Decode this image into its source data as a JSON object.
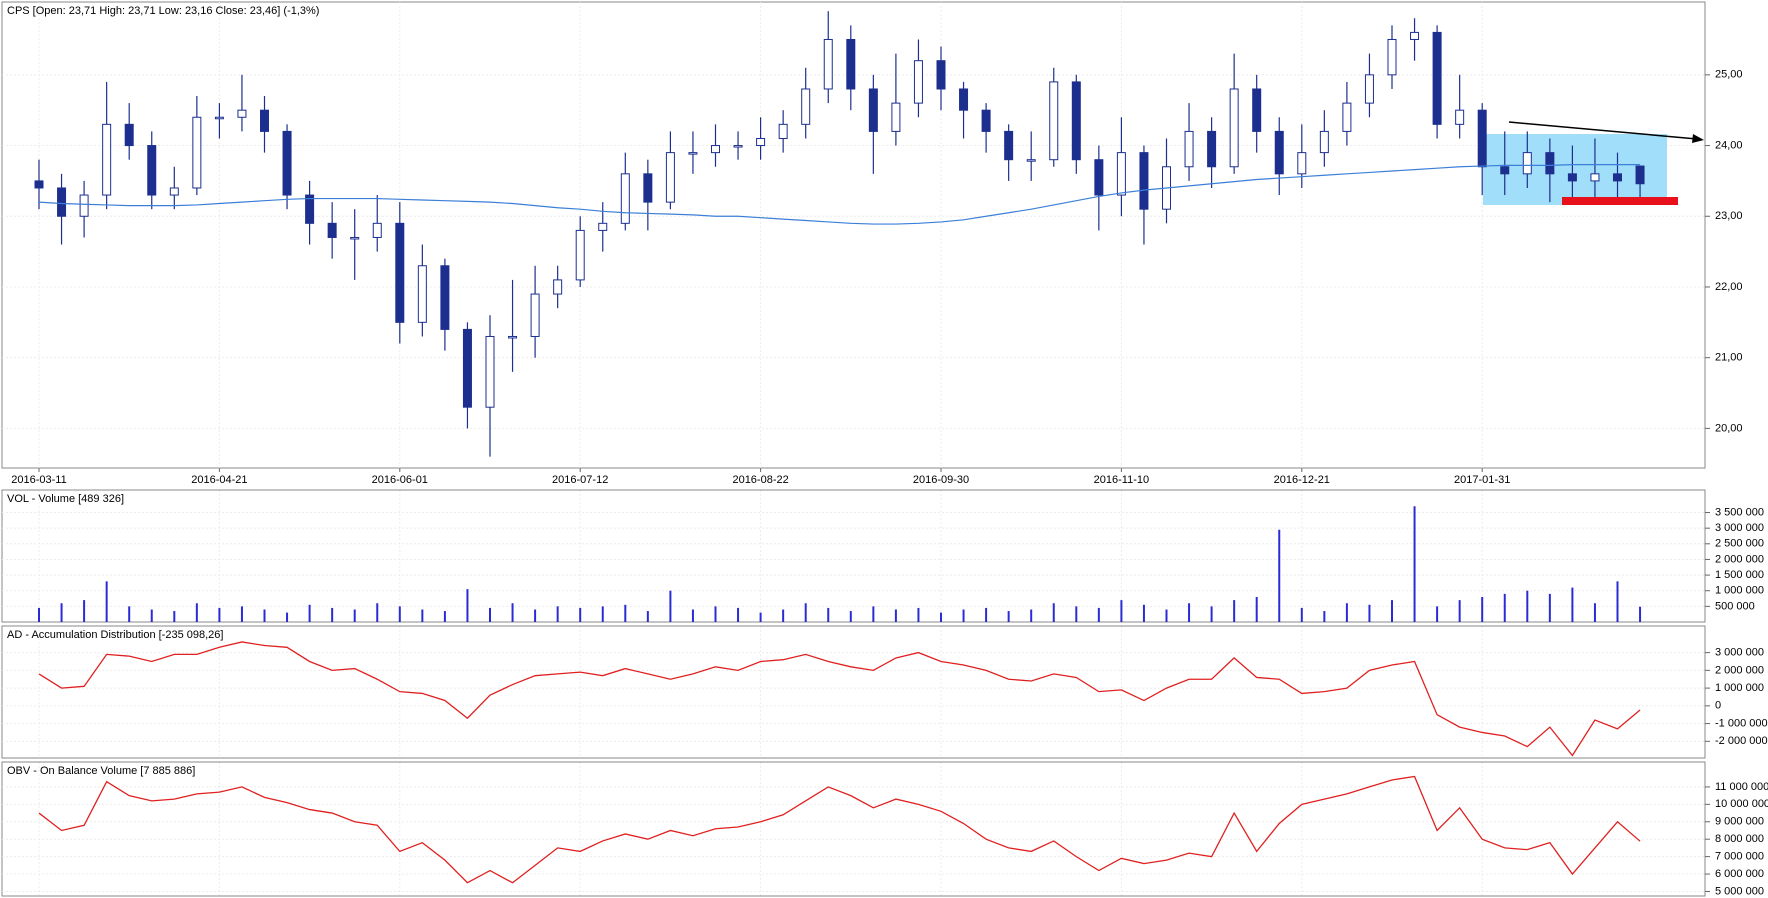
{
  "chart_data": [
    {
      "type": "candlestick",
      "title": "CPS [Open: 23,71  High: 23,71  Low: 23,16  Close: 23,46]  (-1,3%)",
      "color": "#1c2f8f",
      "categories": [
        "2016-03-11",
        null,
        null,
        null,
        null,
        null,
        null,
        null,
        "2016-04-21",
        null,
        null,
        null,
        null,
        null,
        null,
        null,
        "2016-06-01",
        null,
        null,
        null,
        null,
        null,
        null,
        null,
        "2016-07-12",
        null,
        null,
        null,
        null,
        null,
        null,
        null,
        "2016-08-22",
        null,
        null,
        null,
        null,
        null,
        null,
        null,
        "2016-09-30",
        null,
        null,
        null,
        null,
        null,
        null,
        null,
        "2016-11-10",
        null,
        null,
        null,
        null,
        null,
        null,
        null,
        "2016-12-21",
        null,
        null,
        null,
        null,
        null,
        null,
        null,
        "2017-01-31",
        null,
        null,
        null,
        null,
        null,
        null,
        null
      ],
      "open": [
        23.5,
        23.4,
        23.0,
        23.3,
        24.3,
        24.0,
        23.3,
        23.4,
        24.4,
        24.4,
        24.5,
        24.2,
        23.3,
        22.9,
        22.7,
        22.7,
        22.9,
        21.5,
        22.3,
        21.4,
        20.3,
        21.3,
        21.3,
        21.9,
        22.1,
        22.8,
        22.9,
        23.6,
        23.2,
        23.9,
        23.9,
        24.0,
        24.0,
        24.1,
        24.3,
        24.8,
        25.5,
        24.8,
        24.2,
        24.6,
        25.2,
        24.8,
        24.5,
        24.2,
        23.8,
        23.8,
        24.9,
        23.8,
        23.3,
        23.9,
        23.1,
        23.7,
        24.2,
        23.7,
        24.8,
        24.2,
        23.6,
        23.9,
        24.2,
        24.6,
        25.0,
        25.5,
        25.6,
        24.3,
        24.5,
        23.7,
        23.6,
        23.9,
        23.6,
        23.5,
        23.6,
        23.71
      ],
      "high": [
        23.8,
        23.6,
        23.5,
        24.9,
        24.6,
        24.2,
        23.7,
        24.7,
        24.6,
        25.0,
        24.7,
        24.3,
        23.5,
        23.2,
        23.1,
        23.3,
        23.2,
        22.6,
        22.4,
        21.5,
        21.6,
        22.1,
        22.3,
        22.3,
        23.0,
        23.2,
        23.9,
        23.8,
        24.2,
        24.2,
        24.3,
        24.2,
        24.4,
        24.5,
        25.1,
        25.9,
        25.7,
        25.0,
        25.3,
        25.5,
        25.4,
        24.9,
        24.6,
        24.3,
        24.2,
        25.1,
        25.0,
        24.0,
        24.4,
        24.0,
        24.1,
        24.6,
        24.4,
        25.3,
        25.0,
        24.4,
        24.3,
        24.5,
        24.9,
        25.3,
        25.7,
        25.8,
        25.7,
        25.0,
        24.6,
        24.2,
        24.2,
        24.1,
        24.0,
        24.1,
        23.9,
        23.71
      ],
      "low": [
        23.1,
        22.6,
        22.7,
        23.1,
        23.8,
        23.1,
        23.1,
        23.3,
        24.1,
        24.2,
        23.9,
        23.1,
        22.6,
        22.4,
        22.1,
        22.5,
        21.2,
        21.3,
        21.1,
        20.0,
        19.6,
        20.8,
        21.0,
        21.7,
        22.0,
        22.5,
        22.8,
        22.8,
        23.1,
        23.6,
        23.7,
        23.8,
        23.8,
        23.9,
        24.1,
        24.6,
        24.5,
        23.6,
        24.0,
        24.4,
        24.5,
        24.1,
        23.9,
        23.5,
        23.5,
        23.7,
        23.6,
        22.8,
        23.0,
        22.6,
        22.9,
        23.5,
        23.4,
        23.6,
        23.9,
        23.3,
        23.4,
        23.7,
        24.0,
        24.4,
        24.8,
        25.2,
        24.1,
        24.1,
        23.3,
        23.3,
        23.4,
        23.2,
        23.2,
        23.2,
        23.2,
        23.16
      ],
      "close": [
        23.4,
        23.0,
        23.3,
        24.3,
        24.0,
        23.3,
        23.4,
        24.4,
        24.4,
        24.5,
        24.2,
        23.3,
        22.9,
        22.7,
        22.7,
        22.9,
        21.5,
        22.3,
        21.4,
        20.3,
        21.3,
        21.3,
        21.9,
        22.1,
        22.8,
        22.9,
        23.6,
        23.2,
        23.9,
        23.9,
        24.0,
        24.0,
        24.1,
        24.3,
        24.8,
        25.5,
        24.8,
        24.2,
        24.6,
        25.2,
        24.8,
        24.5,
        24.2,
        23.8,
        23.8,
        24.9,
        23.8,
        23.3,
        23.9,
        23.1,
        23.7,
        24.2,
        23.7,
        24.8,
        24.2,
        23.6,
        23.9,
        24.2,
        24.6,
        25.0,
        25.5,
        25.6,
        24.3,
        24.5,
        23.7,
        23.6,
        23.9,
        23.6,
        23.5,
        23.6,
        23.5,
        23.46
      ],
      "ma": {
        "color": "#3b7fd8",
        "values": [
          23.2,
          23.18,
          23.17,
          23.16,
          23.15,
          23.15,
          23.15,
          23.16,
          23.18,
          23.2,
          23.22,
          23.24,
          23.25,
          23.25,
          23.25,
          23.25,
          23.24,
          23.23,
          23.22,
          23.21,
          23.2,
          23.18,
          23.15,
          23.12,
          23.1,
          23.07,
          23.05,
          23.04,
          23.03,
          23.02,
          23.0,
          23.0,
          22.98,
          22.96,
          22.94,
          22.92,
          22.9,
          22.89,
          22.89,
          22.9,
          22.92,
          22.95,
          23.0,
          23.05,
          23.1,
          23.16,
          23.22,
          23.28,
          23.33,
          23.37,
          23.4,
          23.43,
          23.46,
          23.49,
          23.52,
          23.54,
          23.56,
          23.58,
          23.6,
          23.62,
          23.64,
          23.66,
          23.68,
          23.7,
          23.71,
          23.72,
          23.72,
          23.72,
          23.73,
          23.73,
          23.73,
          23.73
        ]
      },
      "ylim": [
        19.44,
        26.03
      ],
      "yticks": [
        {
          "value": 20,
          "label": "20,00"
        },
        {
          "value": 21,
          "label": "21,00"
        },
        {
          "value": 22,
          "label": "22,00"
        },
        {
          "value": 23,
          "label": "23,00"
        },
        {
          "value": 24,
          "label": "24,00"
        },
        {
          "value": 25,
          "label": "25,00"
        }
      ],
      "grid": true
    },
    {
      "type": "bar",
      "title": "VOL - Volume [489 326]",
      "color": "#2b2bd6",
      "values": [
        450000,
        600000,
        700000,
        1300000,
        500000,
        400000,
        350000,
        600000,
        450000,
        500000,
        400000,
        300000,
        550000,
        450000,
        400000,
        600000,
        500000,
        400000,
        350000,
        1050000,
        450000,
        600000,
        400000,
        500000,
        450000,
        500000,
        550000,
        350000,
        1000000,
        400000,
        500000,
        450000,
        300000,
        400000,
        600000,
        450000,
        350000,
        500000,
        400000,
        450000,
        300000,
        400000,
        450000,
        350000,
        400000,
        600000,
        500000,
        450000,
        700000,
        550000,
        400000,
        600000,
        500000,
        700000,
        800000,
        2950000,
        450000,
        350000,
        600000,
        550000,
        700000,
        3700000,
        500000,
        700000,
        800000,
        900000,
        1000000,
        900000,
        1100000,
        600000,
        1300000,
        489326
      ],
      "ylim": [
        0,
        4220000
      ],
      "yticks": [
        {
          "value": 500000,
          "label": "500 000"
        },
        {
          "value": 1000000,
          "label": "1 000 000"
        },
        {
          "value": 1500000,
          "label": "1 500 000"
        },
        {
          "value": 2000000,
          "label": "2 000 000"
        },
        {
          "value": 2500000,
          "label": "2 500 000"
        },
        {
          "value": 3000000,
          "label": "3 000 000"
        },
        {
          "value": 3500000,
          "label": "3 500 000"
        }
      ],
      "grid": true
    },
    {
      "type": "line",
      "title": "AD - Accumulation Distribution [-235 098,26]",
      "color": "#e02020",
      "values": [
        1800000,
        1000000,
        1100000,
        2900000,
        2800000,
        2500000,
        2900000,
        2900000,
        3300000,
        3600000,
        3400000,
        3300000,
        2500000,
        2000000,
        2100000,
        1500000,
        800000,
        700000,
        300000,
        -700000,
        600000,
        1200000,
        1700000,
        1800000,
        1900000,
        1700000,
        2100000,
        1800000,
        1500000,
        1800000,
        2200000,
        2000000,
        2500000,
        2600000,
        2900000,
        2500000,
        2200000,
        2000000,
        2700000,
        3000000,
        2500000,
        2300000,
        2000000,
        1500000,
        1400000,
        1800000,
        1600000,
        800000,
        900000,
        300000,
        1000000,
        1500000,
        1500000,
        2700000,
        1600000,
        1500000,
        700000,
        800000,
        1000000,
        2000000,
        2300000,
        2500000,
        -500000,
        -1200000,
        -1500000,
        -1700000,
        -2300000,
        -1200000,
        -2800000,
        -800000,
        -1300000,
        -235098.26
      ],
      "ylim": [
        -2940000,
        4500000
      ],
      "yticks": [
        {
          "value": -2000000,
          "label": "-2 000 000"
        },
        {
          "value": -1000000,
          "label": "-1 000 000"
        },
        0,
        {
          "value": 1000000,
          "label": "1 000 000"
        },
        {
          "value": 2000000,
          "label": "2 000 000"
        },
        {
          "value": 3000000,
          "label": "3 000 000"
        }
      ],
      "grid": true
    },
    {
      "type": "line",
      "title": "OBV - On Balance Volume [7 885 886]",
      "color": "#e02020",
      "values": [
        9500000,
        8500000,
        8800000,
        11300000,
        10500000,
        10200000,
        10300000,
        10600000,
        10700000,
        11000000,
        10400000,
        10100000,
        9700000,
        9500000,
        9000000,
        8800000,
        7300000,
        7800000,
        6800000,
        5500000,
        6200000,
        5500000,
        6500000,
        7500000,
        7300000,
        7900000,
        8300000,
        8000000,
        8500000,
        8200000,
        8600000,
        8700000,
        9000000,
        9400000,
        10200000,
        11000000,
        10500000,
        9800000,
        10300000,
        10000000,
        9600000,
        8900000,
        8000000,
        7500000,
        7300000,
        7900000,
        7000000,
        6200000,
        6900000,
        6600000,
        6800000,
        7200000,
        7000000,
        9500000,
        7300000,
        8900000,
        10000000,
        10300000,
        10600000,
        11000000,
        11400000,
        11600000,
        8500000,
        9800000,
        8000000,
        7500000,
        7400000,
        7800000,
        6000000,
        7500000,
        9000000,
        7885886
      ],
      "ylim": [
        4740000,
        12430000
      ],
      "yticks": [
        {
          "value": 5000000,
          "label": "5 000 000"
        },
        {
          "value": 6000000,
          "label": "6 000 000"
        },
        {
          "value": 7000000,
          "label": "7 000 000"
        },
        {
          "value": 8000000,
          "label": "8 000 000"
        },
        {
          "value": 9000000,
          "label": "9 000 000"
        },
        {
          "value": 10000000,
          "label": "10 000 000"
        },
        {
          "value": 11000000,
          "label": "11 000 000"
        }
      ],
      "grid": true
    }
  ]
}
